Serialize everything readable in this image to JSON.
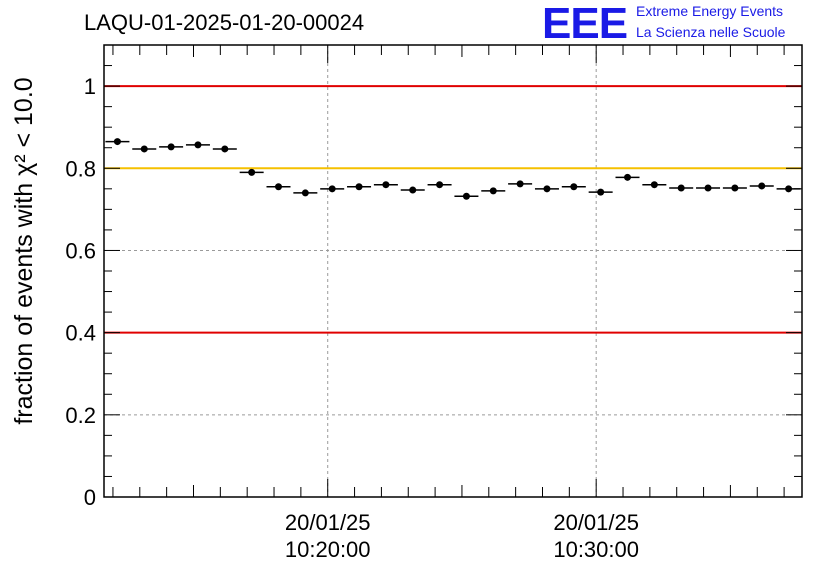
{
  "header": {
    "run_title": "LAQU-01-2025-01-20-00024",
    "logo_text": "EEE",
    "logo_line1": "Extreme Energy Events",
    "logo_line2": "La Scienza nelle Scuole"
  },
  "colors": {
    "reference_red": "#e00000",
    "reference_yellow": "#f5c000",
    "logo_blue": "#1a1ae6"
  },
  "chart_data": {
    "type": "scatter",
    "title": "LAQU-01-2025-01-20-00024",
    "xlabel": "",
    "ylabel": "fraction of events with χ² < 10.0",
    "ylim": [
      0,
      1.1
    ],
    "yticks": [
      0,
      0.2,
      0.4,
      0.6,
      0.8,
      1
    ],
    "ytick_labels": [
      "0",
      "0.2",
      "0.4",
      "0.6",
      "0.8",
      "1"
    ],
    "xtick_labels": [
      {
        "date": "20/01/25",
        "time": "10:20:00"
      },
      {
        "date": "20/01/25",
        "time": "10:30:00"
      }
    ],
    "grid": true,
    "reference_lines": [
      {
        "y": 1.0,
        "color": "#e00000"
      },
      {
        "y": 0.8,
        "color": "#f5c000"
      },
      {
        "y": 0.4,
        "color": "#e00000"
      }
    ],
    "points": [
      {
        "t": "10:12:10",
        "y": 0.865
      },
      {
        "t": "10:13:10",
        "y": 0.847
      },
      {
        "t": "10:14:10",
        "y": 0.852
      },
      {
        "t": "10:15:10",
        "y": 0.857
      },
      {
        "t": "10:16:10",
        "y": 0.847
      },
      {
        "t": "10:17:10",
        "y": 0.79
      },
      {
        "t": "10:18:10",
        "y": 0.755
      },
      {
        "t": "10:19:10",
        "y": 0.74
      },
      {
        "t": "10:20:10",
        "y": 0.75
      },
      {
        "t": "10:21:10",
        "y": 0.755
      },
      {
        "t": "10:22:10",
        "y": 0.76
      },
      {
        "t": "10:23:10",
        "y": 0.747
      },
      {
        "t": "10:24:10",
        "y": 0.76
      },
      {
        "t": "10:25:10",
        "y": 0.732
      },
      {
        "t": "10:26:10",
        "y": 0.745
      },
      {
        "t": "10:27:10",
        "y": 0.762
      },
      {
        "t": "10:28:10",
        "y": 0.75
      },
      {
        "t": "10:29:10",
        "y": 0.755
      },
      {
        "t": "10:30:10",
        "y": 0.742
      },
      {
        "t": "10:31:10",
        "y": 0.778
      },
      {
        "t": "10:32:10",
        "y": 0.76
      },
      {
        "t": "10:33:10",
        "y": 0.752
      },
      {
        "t": "10:34:10",
        "y": 0.752
      },
      {
        "t": "10:35:10",
        "y": 0.752
      },
      {
        "t": "10:36:10",
        "y": 0.757
      },
      {
        "t": "10:37:10",
        "y": 0.75
      }
    ]
  }
}
